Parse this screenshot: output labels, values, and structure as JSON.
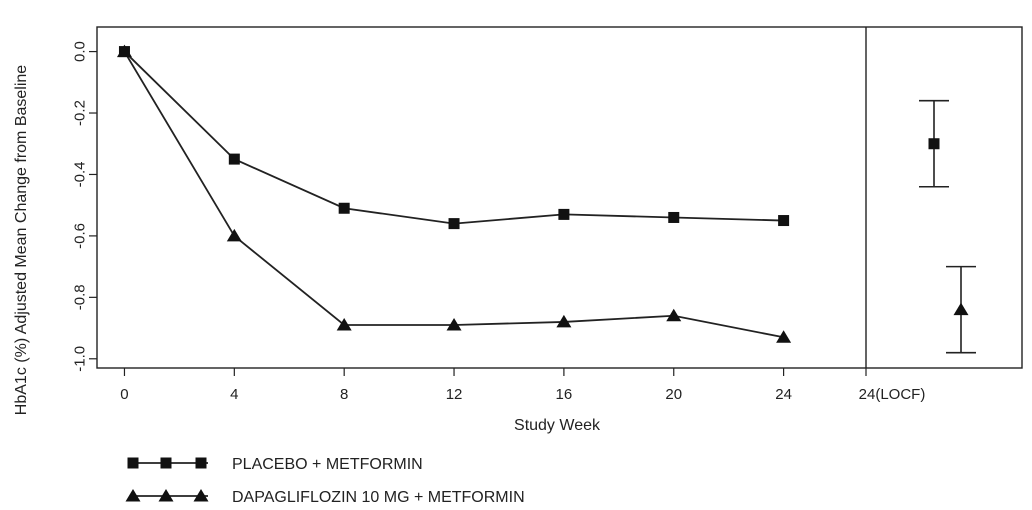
{
  "chart_data": {
    "type": "line",
    "xlabel": "Study Week",
    "ylabel": "HbA1c (%) Adjusted Mean Change from Baseline",
    "x_ticks": [
      "0",
      "4",
      "8",
      "12",
      "16",
      "20",
      "24"
    ],
    "x_tick_values": [
      0,
      4,
      8,
      12,
      16,
      20,
      24
    ],
    "locf_tick": "24(LOCF)",
    "y_ticks": [
      "0.0",
      "-0.2",
      "-0.4",
      "-0.6",
      "-0.8",
      "-1.0"
    ],
    "y_tick_values": [
      0.0,
      -0.2,
      -0.4,
      -0.6,
      -0.8,
      -1.0
    ],
    "ylim": [
      -1.03,
      0.08
    ],
    "xlim": [
      -1,
      27
    ],
    "legend_position": "bottom-left",
    "series": [
      {
        "name": "PLACEBO + METFORMIN",
        "marker": "square",
        "x": [
          0,
          4,
          8,
          12,
          16,
          20,
          24
        ],
        "y": [
          0.0,
          -0.35,
          -0.51,
          -0.56,
          -0.53,
          -0.54,
          -0.55
        ],
        "locf": {
          "mean": -0.3,
          "lower": -0.44,
          "upper": -0.16
        }
      },
      {
        "name": "DAPAGLIFLOZIN 10 MG + METFORMIN",
        "marker": "triangle",
        "x": [
          0,
          4,
          8,
          12,
          16,
          20,
          24
        ],
        "y": [
          0.0,
          -0.6,
          -0.89,
          -0.89,
          -0.88,
          -0.86,
          -0.93
        ],
        "locf": {
          "mean": -0.84,
          "lower": -0.98,
          "upper": -0.7
        }
      }
    ]
  }
}
